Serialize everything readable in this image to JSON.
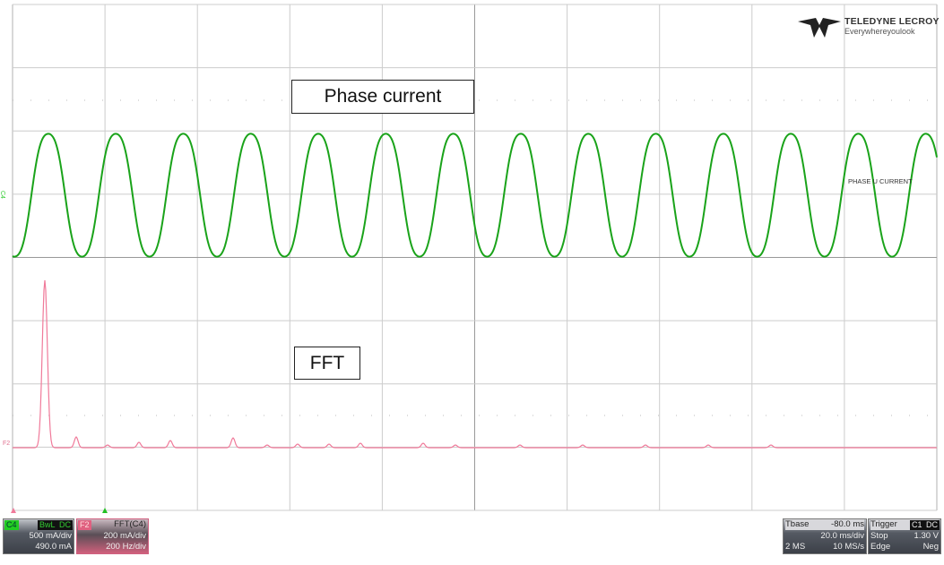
{
  "annotations": {
    "phase_current": "Phase current",
    "fft": "FFT"
  },
  "trace_label": "PHASE U CURRENT",
  "logo": {
    "brand": "TELEDYNE LECROY",
    "tagline": "Everywhereyoulook"
  },
  "markers": {
    "c4": "C4",
    "f2": "F2"
  },
  "channel_c4": {
    "name": "C4",
    "bwl": "BwL",
    "coupling": "DC",
    "scale": "500 mA/div",
    "offset": "490.0 mA"
  },
  "math_f2": {
    "name": "F2",
    "function": "FFT(C4)",
    "scale": "200 mA/div",
    "hscale": "200 Hz/div"
  },
  "timebase": {
    "label": "Tbase",
    "delay": "-80.0 ms",
    "scale": "20.0 ms/div",
    "points": "2 MS",
    "rate": "10 MS/s"
  },
  "trigger": {
    "label": "Trigger",
    "source": "C1",
    "coupling": "DC",
    "mode": "Stop",
    "level": "1.30 V",
    "type": "Edge",
    "slope": "Neg"
  },
  "colors": {
    "c4": "#1aa31a",
    "f2": "#f07a9a",
    "grid": "#c8c8c8"
  }
}
